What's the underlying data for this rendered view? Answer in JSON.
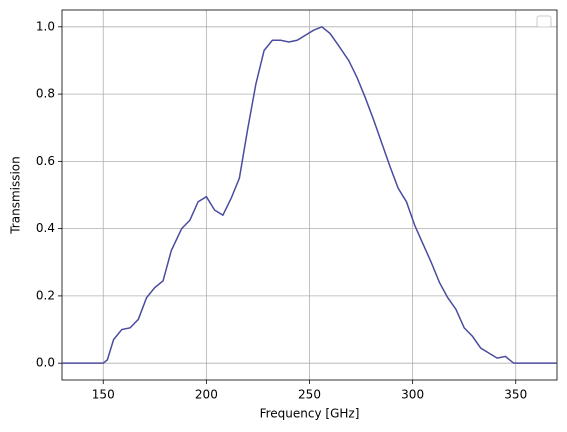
{
  "chart_data": {
    "type": "line",
    "x_label": "Frequency [GHz]",
    "y_label": "Transmission",
    "x": [
      130,
      150,
      152,
      155,
      159,
      163,
      167,
      171,
      175,
      179,
      183,
      188,
      192,
      196,
      200,
      204,
      208,
      212,
      216,
      220,
      224,
      228,
      232,
      236,
      240,
      244,
      248,
      252,
      256,
      260,
      264,
      269,
      273,
      277,
      281,
      285,
      289,
      293,
      297,
      301,
      305,
      309,
      313,
      317,
      321,
      325,
      329,
      333,
      337,
      341,
      345,
      349,
      353,
      370
    ],
    "series": [
      {
        "color": "#4b4b9f",
        "values": [
          0,
          0,
          0.01,
          0.07,
          0.1,
          0.105,
          0.13,
          0.195,
          0.225,
          0.245,
          0.335,
          0.4,
          0.425,
          0.48,
          0.495,
          0.455,
          0.44,
          0.49,
          0.55,
          0.695,
          0.83,
          0.93,
          0.96,
          0.96,
          0.955,
          0.96,
          0.975,
          0.99,
          1.0,
          0.98,
          0.945,
          0.9,
          0.85,
          0.79,
          0.725,
          0.655,
          0.585,
          0.52,
          0.48,
          0.41,
          0.355,
          0.3,
          0.24,
          0.195,
          0.16,
          0.105,
          0.08,
          0.045,
          0.03,
          0.015,
          0.02,
          0,
          0,
          0
        ]
      }
    ],
    "xlim": [
      130,
      370
    ],
    "ylim": [
      -0.05,
      1.05
    ],
    "xticks": [
      150,
      200,
      250,
      300,
      350
    ],
    "yticks": [
      {
        "value": 0,
        "label": "0.0"
      },
      {
        "value": 0.2,
        "label": "0.2"
      },
      {
        "value": 0.4,
        "label": "0.4"
      },
      {
        "value": 0.6,
        "label": "0.6"
      },
      {
        "value": 0.8,
        "label": "0.8"
      },
      {
        "value": 1.0,
        "label": "1.0"
      }
    ],
    "grid": true
  }
}
